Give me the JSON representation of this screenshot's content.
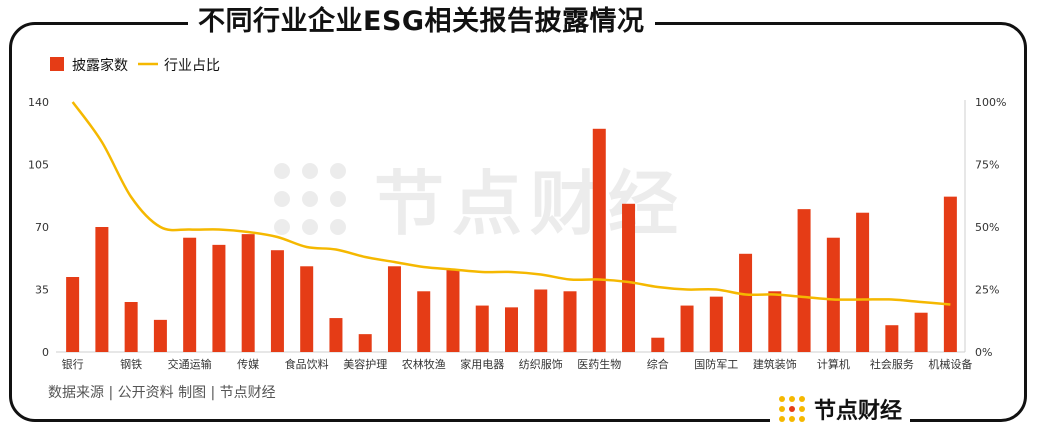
{
  "title": "不同行业企业ESG相关报告披露情况",
  "source": "数据来源 | 公开资料   制图 | 节点财经",
  "brand": "节点财经",
  "watermark": "节点财经",
  "colors": {
    "bar": "#e53c16",
    "line": "#f5b800"
  },
  "chart_data": {
    "type": "bar",
    "categories": [
      "银行",
      "",
      "钢铁",
      "",
      "交通运输",
      "",
      "传媒",
      "",
      "食品饮料",
      "",
      "美容护理",
      "",
      "农林牧渔",
      "",
      "家用电器",
      "",
      "纺织服饰",
      "",
      "医药生物",
      "",
      "综合",
      "",
      "国防军工",
      "",
      "建筑装饰",
      "",
      "计算机",
      "",
      "社会服务",
      "",
      "机械设备"
    ],
    "series": [
      {
        "name": "披露家数",
        "type": "bar",
        "axis": "left",
        "values": [
          42,
          70,
          28,
          18,
          64,
          60,
          66,
          57,
          48,
          19,
          10,
          48,
          34,
          46,
          26,
          25,
          35,
          34,
          125,
          83,
          8,
          26,
          31,
          55,
          34,
          80,
          64,
          78,
          15,
          22,
          87
        ]
      },
      {
        "name": "行业占比",
        "type": "line",
        "axis": "right",
        "values": [
          100,
          84,
          62,
          50,
          49,
          49,
          48,
          46,
          42,
          41,
          38,
          36,
          34,
          33,
          32,
          32,
          31,
          29,
          29,
          28,
          26,
          25,
          25,
          23,
          23,
          22,
          21,
          21,
          21,
          20,
          19
        ]
      }
    ],
    "legend": {
      "position": "top-left",
      "items": [
        "披露家数",
        "行业占比"
      ]
    },
    "y_left": {
      "ticks": [
        0,
        35,
        70,
        105,
        140
      ],
      "range": [
        0,
        140
      ]
    },
    "y_right": {
      "ticks": [
        "0%",
        "25%",
        "50%",
        "75%",
        "100%"
      ],
      "range": [
        0,
        100
      ]
    },
    "grid": false
  }
}
